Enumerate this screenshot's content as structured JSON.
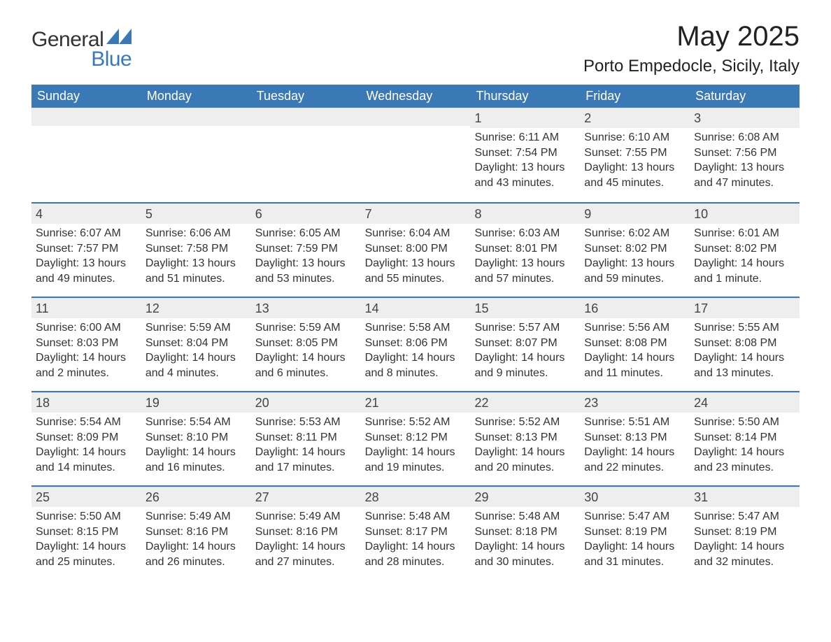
{
  "brand": {
    "general": "General",
    "blue": "Blue",
    "accent_color": "#3a78b6"
  },
  "title": {
    "month": "May 2025",
    "location": "Porto Empedocle, Sicily, Italy"
  },
  "colors": {
    "header_bg": "#3a78b6",
    "header_text": "#ffffff",
    "daynum_bg": "#eeeeee",
    "text": "#333333",
    "row_divider": "#3a78b6",
    "background": "#ffffff"
  },
  "fonts": {
    "title_size_pt": 30,
    "location_size_pt": 18,
    "dow_size_pt": 14,
    "body_size_pt": 12
  },
  "calendar": {
    "days_of_week": [
      "Sunday",
      "Monday",
      "Tuesday",
      "Wednesday",
      "Thursday",
      "Friday",
      "Saturday"
    ],
    "weeks": [
      [
        null,
        null,
        null,
        null,
        {
          "n": "1",
          "sunrise": "Sunrise: 6:11 AM",
          "sunset": "Sunset: 7:54 PM",
          "daylight": "Daylight: 13 hours and 43 minutes."
        },
        {
          "n": "2",
          "sunrise": "Sunrise: 6:10 AM",
          "sunset": "Sunset: 7:55 PM",
          "daylight": "Daylight: 13 hours and 45 minutes."
        },
        {
          "n": "3",
          "sunrise": "Sunrise: 6:08 AM",
          "sunset": "Sunset: 7:56 PM",
          "daylight": "Daylight: 13 hours and 47 minutes."
        }
      ],
      [
        {
          "n": "4",
          "sunrise": "Sunrise: 6:07 AM",
          "sunset": "Sunset: 7:57 PM",
          "daylight": "Daylight: 13 hours and 49 minutes."
        },
        {
          "n": "5",
          "sunrise": "Sunrise: 6:06 AM",
          "sunset": "Sunset: 7:58 PM",
          "daylight": "Daylight: 13 hours and 51 minutes."
        },
        {
          "n": "6",
          "sunrise": "Sunrise: 6:05 AM",
          "sunset": "Sunset: 7:59 PM",
          "daylight": "Daylight: 13 hours and 53 minutes."
        },
        {
          "n": "7",
          "sunrise": "Sunrise: 6:04 AM",
          "sunset": "Sunset: 8:00 PM",
          "daylight": "Daylight: 13 hours and 55 minutes."
        },
        {
          "n": "8",
          "sunrise": "Sunrise: 6:03 AM",
          "sunset": "Sunset: 8:01 PM",
          "daylight": "Daylight: 13 hours and 57 minutes."
        },
        {
          "n": "9",
          "sunrise": "Sunrise: 6:02 AM",
          "sunset": "Sunset: 8:02 PM",
          "daylight": "Daylight: 13 hours and 59 minutes."
        },
        {
          "n": "10",
          "sunrise": "Sunrise: 6:01 AM",
          "sunset": "Sunset: 8:02 PM",
          "daylight": "Daylight: 14 hours and 1 minute."
        }
      ],
      [
        {
          "n": "11",
          "sunrise": "Sunrise: 6:00 AM",
          "sunset": "Sunset: 8:03 PM",
          "daylight": "Daylight: 14 hours and 2 minutes."
        },
        {
          "n": "12",
          "sunrise": "Sunrise: 5:59 AM",
          "sunset": "Sunset: 8:04 PM",
          "daylight": "Daylight: 14 hours and 4 minutes."
        },
        {
          "n": "13",
          "sunrise": "Sunrise: 5:59 AM",
          "sunset": "Sunset: 8:05 PM",
          "daylight": "Daylight: 14 hours and 6 minutes."
        },
        {
          "n": "14",
          "sunrise": "Sunrise: 5:58 AM",
          "sunset": "Sunset: 8:06 PM",
          "daylight": "Daylight: 14 hours and 8 minutes."
        },
        {
          "n": "15",
          "sunrise": "Sunrise: 5:57 AM",
          "sunset": "Sunset: 8:07 PM",
          "daylight": "Daylight: 14 hours and 9 minutes."
        },
        {
          "n": "16",
          "sunrise": "Sunrise: 5:56 AM",
          "sunset": "Sunset: 8:08 PM",
          "daylight": "Daylight: 14 hours and 11 minutes."
        },
        {
          "n": "17",
          "sunrise": "Sunrise: 5:55 AM",
          "sunset": "Sunset: 8:08 PM",
          "daylight": "Daylight: 14 hours and 13 minutes."
        }
      ],
      [
        {
          "n": "18",
          "sunrise": "Sunrise: 5:54 AM",
          "sunset": "Sunset: 8:09 PM",
          "daylight": "Daylight: 14 hours and 14 minutes."
        },
        {
          "n": "19",
          "sunrise": "Sunrise: 5:54 AM",
          "sunset": "Sunset: 8:10 PM",
          "daylight": "Daylight: 14 hours and 16 minutes."
        },
        {
          "n": "20",
          "sunrise": "Sunrise: 5:53 AM",
          "sunset": "Sunset: 8:11 PM",
          "daylight": "Daylight: 14 hours and 17 minutes."
        },
        {
          "n": "21",
          "sunrise": "Sunrise: 5:52 AM",
          "sunset": "Sunset: 8:12 PM",
          "daylight": "Daylight: 14 hours and 19 minutes."
        },
        {
          "n": "22",
          "sunrise": "Sunrise: 5:52 AM",
          "sunset": "Sunset: 8:13 PM",
          "daylight": "Daylight: 14 hours and 20 minutes."
        },
        {
          "n": "23",
          "sunrise": "Sunrise: 5:51 AM",
          "sunset": "Sunset: 8:13 PM",
          "daylight": "Daylight: 14 hours and 22 minutes."
        },
        {
          "n": "24",
          "sunrise": "Sunrise: 5:50 AM",
          "sunset": "Sunset: 8:14 PM",
          "daylight": "Daylight: 14 hours and 23 minutes."
        }
      ],
      [
        {
          "n": "25",
          "sunrise": "Sunrise: 5:50 AM",
          "sunset": "Sunset: 8:15 PM",
          "daylight": "Daylight: 14 hours and 25 minutes."
        },
        {
          "n": "26",
          "sunrise": "Sunrise: 5:49 AM",
          "sunset": "Sunset: 8:16 PM",
          "daylight": "Daylight: 14 hours and 26 minutes."
        },
        {
          "n": "27",
          "sunrise": "Sunrise: 5:49 AM",
          "sunset": "Sunset: 8:16 PM",
          "daylight": "Daylight: 14 hours and 27 minutes."
        },
        {
          "n": "28",
          "sunrise": "Sunrise: 5:48 AM",
          "sunset": "Sunset: 8:17 PM",
          "daylight": "Daylight: 14 hours and 28 minutes."
        },
        {
          "n": "29",
          "sunrise": "Sunrise: 5:48 AM",
          "sunset": "Sunset: 8:18 PM",
          "daylight": "Daylight: 14 hours and 30 minutes."
        },
        {
          "n": "30",
          "sunrise": "Sunrise: 5:47 AM",
          "sunset": "Sunset: 8:19 PM",
          "daylight": "Daylight: 14 hours and 31 minutes."
        },
        {
          "n": "31",
          "sunrise": "Sunrise: 5:47 AM",
          "sunset": "Sunset: 8:19 PM",
          "daylight": "Daylight: 14 hours and 32 minutes."
        }
      ]
    ]
  }
}
